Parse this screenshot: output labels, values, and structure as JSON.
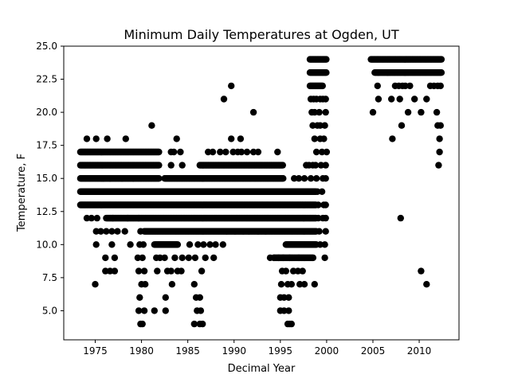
{
  "chart_data": {
    "type": "scatter",
    "title": "Minimum Daily Temperatures at Ogden, UT",
    "xlabel": "Decimal Year",
    "ylabel": "Temperature, F",
    "xlim": [
      1971.6,
      2014.3
    ],
    "ylim": [
      2.8,
      25.0
    ],
    "xticks": [
      1975,
      1980,
      1985,
      1990,
      1995,
      2000,
      2005,
      2010
    ],
    "yticks": [
      5.0,
      7.5,
      10.0,
      12.5,
      15.0,
      17.5,
      20.0,
      22.5,
      25.0
    ],
    "marker_color": "#000000",
    "grid": false,
    "legend": "none",
    "dense_bands": [
      {
        "y": 17,
        "x_start": 1973.4,
        "x_end": 1981.9
      },
      {
        "y": 16,
        "x_start": 1973.4,
        "x_end": 1981.9
      },
      {
        "y": 16,
        "x_start": 1986.3,
        "x_end": 1995.3
      },
      {
        "y": 15,
        "x_start": 1973.4,
        "x_end": 1981.9
      },
      {
        "y": 15,
        "x_start": 1982.5,
        "x_end": 1995.3
      },
      {
        "y": 14,
        "x_start": 1973.4,
        "x_end": 1998.9
      },
      {
        "y": 13,
        "x_start": 1973.4,
        "x_end": 1998.9
      },
      {
        "y": 12,
        "x_start": 1976.2,
        "x_end": 1998.9
      },
      {
        "y": 11,
        "x_start": 1980.3,
        "x_end": 1998.9
      },
      {
        "y": 10,
        "x_start": 1981.5,
        "x_end": 1983.9
      },
      {
        "y": 10,
        "x_start": 1995.6,
        "x_end": 1998.9
      },
      {
        "y": 9,
        "x_start": 1994.3,
        "x_end": 1998.6
      },
      {
        "y": 24,
        "x_start": 1998.2,
        "x_end": 2000.0
      },
      {
        "y": 23,
        "x_start": 1998.2,
        "x_end": 2000.0
      },
      {
        "y": 22,
        "x_start": 1998.2,
        "x_end": 1999.6
      },
      {
        "y": 24,
        "x_start": 2004.8,
        "x_end": 2012.4
      },
      {
        "y": 23,
        "x_start": 2005.2,
        "x_end": 2012.4
      }
    ],
    "points": [
      [
        1974.1,
        18
      ],
      [
        1975.1,
        18
      ],
      [
        1976.3,
        18
      ],
      [
        1978.3,
        18
      ],
      [
        1981.1,
        19
      ],
      [
        1983.8,
        18
      ],
      [
        1983.2,
        17
      ],
      [
        1983.5,
        17
      ],
      [
        1984.2,
        17
      ],
      [
        1984.4,
        16
      ],
      [
        1983.2,
        16
      ],
      [
        1987.2,
        17
      ],
      [
        1987.7,
        17
      ],
      [
        1988.5,
        17
      ],
      [
        1989.1,
        17
      ],
      [
        1989.9,
        17
      ],
      [
        1990.4,
        17
      ],
      [
        1990.8,
        17
      ],
      [
        1991.4,
        17
      ],
      [
        1992.1,
        17
      ],
      [
        1992.6,
        17
      ],
      [
        1994.7,
        17
      ],
      [
        1989.7,
        18
      ],
      [
        1990.7,
        18
      ],
      [
        1988.9,
        21
      ],
      [
        1989.7,
        22
      ],
      [
        1992.1,
        20
      ],
      [
        1975.9,
        15
      ],
      [
        1976.6,
        15
      ],
      [
        1977.9,
        15
      ],
      [
        1979.1,
        15
      ],
      [
        1974.1,
        12
      ],
      [
        1974.6,
        12
      ],
      [
        1975.2,
        12
      ],
      [
        1976.9,
        12
      ],
      [
        1978.5,
        12
      ],
      [
        1979.7,
        12
      ],
      [
        1975.1,
        11
      ],
      [
        1975.6,
        11
      ],
      [
        1976.2,
        11
      ],
      [
        1976.8,
        11
      ],
      [
        1977.4,
        11
      ],
      [
        1978.2,
        11
      ],
      [
        1979.9,
        11
      ],
      [
        1975.1,
        10
      ],
      [
        1976.8,
        10
      ],
      [
        1978.8,
        10
      ],
      [
        1979.8,
        10
      ],
      [
        1980.2,
        10
      ],
      [
        1981.4,
        10
      ],
      [
        1985.2,
        10
      ],
      [
        1986.1,
        10
      ],
      [
        1986.7,
        10
      ],
      [
        1987.4,
        10
      ],
      [
        1988.0,
        10
      ],
      [
        1988.8,
        10
      ],
      [
        1976.1,
        9
      ],
      [
        1977.1,
        9
      ],
      [
        1979.6,
        9
      ],
      [
        1980.1,
        9
      ],
      [
        1981.6,
        9
      ],
      [
        1982.0,
        9
      ],
      [
        1982.5,
        9
      ],
      [
        1983.6,
        9
      ],
      [
        1984.4,
        9
      ],
      [
        1985.1,
        9
      ],
      [
        1985.8,
        9
      ],
      [
        1986.9,
        9
      ],
      [
        1987.8,
        9
      ],
      [
        1976.1,
        8
      ],
      [
        1976.6,
        8
      ],
      [
        1977.1,
        8
      ],
      [
        1979.7,
        8
      ],
      [
        1980.3,
        8
      ],
      [
        1981.7,
        8
      ],
      [
        1982.8,
        8
      ],
      [
        1983.2,
        8
      ],
      [
        1983.9,
        8
      ],
      [
        1984.3,
        8
      ],
      [
        1986.5,
        8
      ],
      [
        1975.0,
        7
      ],
      [
        1980.0,
        7
      ],
      [
        1980.4,
        7
      ],
      [
        1983.3,
        7
      ],
      [
        1985.7,
        7
      ],
      [
        1979.8,
        6
      ],
      [
        1982.6,
        6
      ],
      [
        1985.9,
        6
      ],
      [
        1986.3,
        6
      ],
      [
        1979.7,
        5
      ],
      [
        1980.3,
        5
      ],
      [
        1981.4,
        5
      ],
      [
        1982.6,
        5
      ],
      [
        1986.0,
        5
      ],
      [
        1986.4,
        5
      ],
      [
        1979.9,
        4
      ],
      [
        1980.1,
        4
      ],
      [
        1985.7,
        4
      ],
      [
        1986.3,
        4
      ],
      [
        1986.6,
        4
      ],
      [
        1989.2,
        11
      ],
      [
        1990.1,
        11
      ],
      [
        1991.0,
        11
      ],
      [
        1991.6,
        11
      ],
      [
        1992.6,
        11
      ],
      [
        1993.4,
        11
      ],
      [
        1993.9,
        9
      ],
      [
        1994.3,
        9
      ],
      [
        1994.8,
        9
      ],
      [
        1995.3,
        9
      ],
      [
        1996.0,
        9
      ],
      [
        1997.0,
        9
      ],
      [
        1995.2,
        8
      ],
      [
        1995.6,
        8
      ],
      [
        1996.4,
        8
      ],
      [
        1996.9,
        8
      ],
      [
        1997.4,
        8
      ],
      [
        1995.1,
        7
      ],
      [
        1995.8,
        7
      ],
      [
        1996.2,
        7
      ],
      [
        1997.1,
        7
      ],
      [
        1997.6,
        7
      ],
      [
        1998.7,
        7
      ],
      [
        1995.0,
        6
      ],
      [
        1995.4,
        6
      ],
      [
        1995.9,
        6
      ],
      [
        1995.0,
        5
      ],
      [
        1995.4,
        5
      ],
      [
        1995.9,
        5
      ],
      [
        1995.8,
        4
      ],
      [
        1996.0,
        4
      ],
      [
        1996.2,
        4
      ],
      [
        1996.5,
        15
      ],
      [
        1997.0,
        15
      ],
      [
        1997.6,
        15
      ],
      [
        1998.3,
        15
      ],
      [
        1997.8,
        16
      ],
      [
        1998.1,
        16
      ],
      [
        1998.5,
        16
      ],
      [
        1998.3,
        21
      ],
      [
        1998.6,
        21
      ],
      [
        1998.9,
        21
      ],
      [
        1999.3,
        21
      ],
      [
        1999.6,
        21
      ],
      [
        1999.9,
        21
      ],
      [
        1998.4,
        20
      ],
      [
        1998.7,
        20
      ],
      [
        1999.2,
        20
      ],
      [
        1999.9,
        20
      ],
      [
        1998.5,
        19
      ],
      [
        1999.0,
        19
      ],
      [
        1999.3,
        19
      ],
      [
        1999.8,
        19
      ],
      [
        1998.7,
        18
      ],
      [
        1999.3,
        18
      ],
      [
        1999.7,
        18
      ],
      [
        1998.9,
        17
      ],
      [
        1999.5,
        17
      ],
      [
        2000.0,
        17
      ],
      [
        1998.8,
        16
      ],
      [
        1999.4,
        16
      ],
      [
        1999.9,
        16
      ],
      [
        1998.9,
        15
      ],
      [
        1999.6,
        15
      ],
      [
        1999.9,
        15
      ],
      [
        1999.0,
        14
      ],
      [
        1999.5,
        14
      ],
      [
        1999.1,
        13
      ],
      [
        1999.7,
        13
      ],
      [
        1999.9,
        13
      ],
      [
        1999.1,
        12
      ],
      [
        1999.6,
        12
      ],
      [
        1999.9,
        12
      ],
      [
        1999.2,
        11
      ],
      [
        1999.9,
        11
      ],
      [
        1999.3,
        10
      ],
      [
        1999.8,
        10
      ],
      [
        1999.8,
        9
      ],
      [
        2005.6,
        23
      ],
      [
        2006.6,
        23
      ],
      [
        2005.5,
        22
      ],
      [
        2007.4,
        22
      ],
      [
        2007.8,
        22
      ],
      [
        2008.2,
        22
      ],
      [
        2008.5,
        22
      ],
      [
        2009.0,
        22
      ],
      [
        2011.2,
        22
      ],
      [
        2011.6,
        22
      ],
      [
        2012.0,
        22
      ],
      [
        2012.3,
        22
      ],
      [
        2005.6,
        21
      ],
      [
        2007.0,
        21
      ],
      [
        2007.9,
        21
      ],
      [
        2009.5,
        21
      ],
      [
        2010.8,
        21
      ],
      [
        2005.0,
        20
      ],
      [
        2008.8,
        20
      ],
      [
        2010.2,
        20
      ],
      [
        2011.9,
        20
      ],
      [
        2008.1,
        19
      ],
      [
        2012.0,
        19
      ],
      [
        2012.3,
        19
      ],
      [
        2007.1,
        18
      ],
      [
        2012.2,
        18
      ],
      [
        2012.2,
        17
      ],
      [
        2012.1,
        16
      ],
      [
        2008.0,
        12
      ],
      [
        2010.2,
        8
      ],
      [
        2010.8,
        7
      ]
    ]
  }
}
